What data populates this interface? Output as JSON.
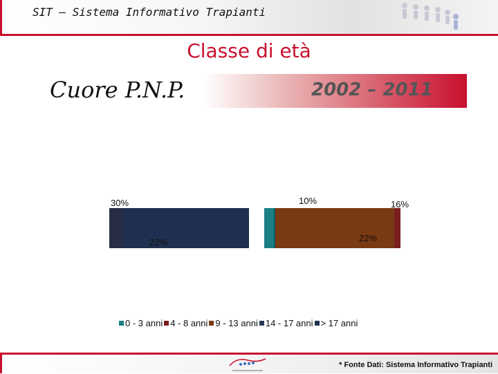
{
  "header": {
    "title": "SIT – Sistema Informativo Trapianti"
  },
  "chart_title": "Classe di età",
  "band": {
    "organ": "Cuore P.N.P.",
    "period": "2002 – 2011"
  },
  "colors": {
    "brand": "#c8102e"
  },
  "chart_data": {
    "type": "bar",
    "title": "Classe di età",
    "xlabel": "",
    "ylabel": "",
    "categories": [
      "0 - 3 anni",
      "4 - 8 anni",
      "9 - 13 anni",
      "14 - 17 anni",
      "> 17  anni"
    ],
    "series": [
      {
        "name": "0 - 3 anni",
        "color": "#1b7f86"
      },
      {
        "name": "4 - 8 anni",
        "color": "#7a1f1f"
      },
      {
        "name": "9 - 13 anni",
        "color": "#7a3a14"
      },
      {
        "name": "14 - 17 anni",
        "color": "#2a3a56"
      },
      {
        "name": "> 17  anni",
        "color": "#1e2f4f"
      }
    ],
    "data_labels": [
      "30%",
      "22%",
      "10%",
      "22%",
      "16%"
    ],
    "legend_position": "bottom",
    "grid": false
  },
  "footer": {
    "note": "* Fonte Dati: Sistema Informativo Trapianti"
  }
}
